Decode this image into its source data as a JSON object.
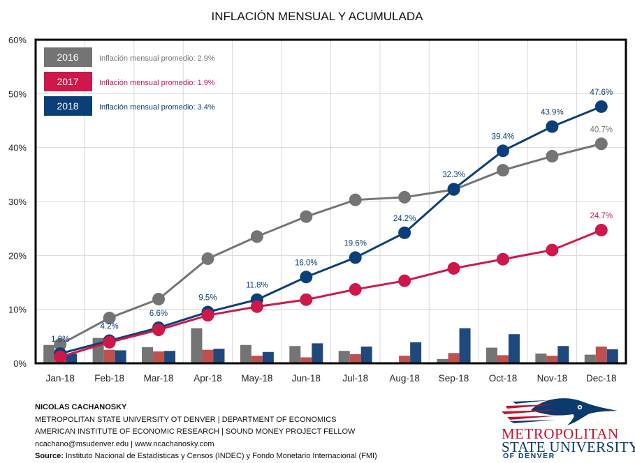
{
  "chart_data": {
    "type": "line",
    "title": "INFLACIÓN MENSUAL Y ACUMULADA",
    "xlabel": "",
    "ylabel": "",
    "ylim": [
      0,
      60
    ],
    "yticks": [
      "0%",
      "10%",
      "20%",
      "30%",
      "40%",
      "50%",
      "60%"
    ],
    "ytick_values": [
      0,
      10,
      20,
      30,
      40,
      50,
      60
    ],
    "grid": true,
    "legend_position": "top-left",
    "categories": [
      "Jan-18",
      "Feb-18",
      "Mar-18",
      "Apr-18",
      "May-18",
      "Jun-18",
      "Jul-18",
      "Aug-18",
      "Sep-18",
      "Oct-18",
      "Nov-18",
      "Dec-18"
    ],
    "series": [
      {
        "name": "2016",
        "legend_text": "Inflación mensual promedio: 2.9%",
        "color": "#747474",
        "bar_color": "#747474",
        "cumulative": [
          3.5,
          8.4,
          11.9,
          19.4,
          23.5,
          27.2,
          30.3,
          30.8,
          32.2,
          35.8,
          38.4,
          40.7
        ],
        "monthly": [
          3.4,
          4.7,
          3.0,
          6.5,
          3.4,
          3.2,
          2.3,
          0.2,
          0.8,
          2.9,
          1.8,
          1.6
        ],
        "labels": [
          "",
          "",
          "",
          "",
          "",
          "",
          "",
          "",
          "",
          "",
          "",
          "40.7%"
        ]
      },
      {
        "name": "2017",
        "legend_text": "Inflación mensual promedio: 1.9%",
        "color": "#d0174a",
        "bar_color": "#c0504d",
        "cumulative": [
          1.2,
          3.9,
          6.2,
          8.9,
          10.5,
          11.8,
          13.7,
          15.3,
          17.6,
          19.3,
          21.0,
          24.7
        ],
        "monthly": [
          1.3,
          2.5,
          2.2,
          2.5,
          1.4,
          1.1,
          1.7,
          1.4,
          1.9,
          1.5,
          1.4,
          3.1
        ],
        "labels": [
          "",
          "",
          "",
          "",
          "",
          "",
          "",
          "",
          "",
          "",
          "",
          "24.7%"
        ]
      },
      {
        "name": "2018",
        "legend_text": "Inflación mensual promedio: 3.4%",
        "color": "#0b3f7a",
        "bar_color": "#1f497d",
        "cumulative": [
          1.8,
          4.2,
          6.6,
          9.5,
          11.8,
          16.0,
          19.6,
          24.2,
          32.3,
          39.4,
          43.9,
          47.6
        ],
        "monthly": [
          1.8,
          2.4,
          2.3,
          2.7,
          2.1,
          3.7,
          3.1,
          3.9,
          6.5,
          5.4,
          3.2,
          2.6
        ],
        "labels": [
          "1.8%",
          "4.2%",
          "6.6%",
          "9.5%",
          "11.8%",
          "16.0%",
          "19.6%",
          "24.2%",
          "32.3%",
          "39.4%",
          "43.9%",
          "47.6%"
        ]
      }
    ]
  },
  "footer": {
    "author": "NICOLAS CACHANOSKY",
    "line1": "METROPOLITAN  STATE UNIVERSITY  OT DENVER  | DEPARTMENT  OF ECONOMICS",
    "line2": "AMERICAN  INSTITUTE  OF ECONOMIC RESEARCH  | SOUND  MONEY  PROJECT FELLOW",
    "contact": "ncachano@msudenver.edu | www.ncachanosky.com",
    "source_label": "Source:",
    "source_text": " Instituto Nacional de Estadísticas y Censos (INDEC) y Fondo Monetario Internacional (FMI)"
  },
  "logo": {
    "line1": "METROPOLITAN",
    "line2": "STATE UNIVERSITY",
    "trademark": "SM",
    "line3": "OF DENVER"
  }
}
